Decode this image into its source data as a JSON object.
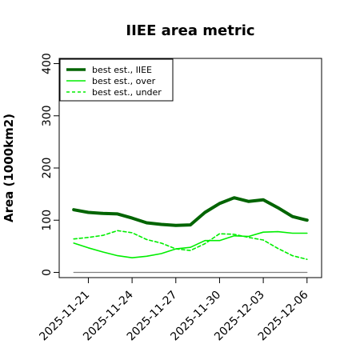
{
  "chart_data": {
    "type": "line",
    "title": "IIEE area metric",
    "xlabel": "",
    "ylabel": "Area (1000km2)",
    "ylim": [
      -10,
      410
    ],
    "yticks": [
      0,
      100,
      200,
      300,
      400
    ],
    "xticks": [
      "2025-11-21",
      "2025-11-24",
      "2025-11-27",
      "2025-11-30",
      "2025-12-03",
      "2025-12-06"
    ],
    "x": [
      "2025-11-20",
      "2025-11-21",
      "2025-11-22",
      "2025-11-23",
      "2025-11-24",
      "2025-11-25",
      "2025-11-26",
      "2025-11-27",
      "2025-11-28",
      "2025-11-29",
      "2025-11-30",
      "2025-12-01",
      "2025-12-02",
      "2025-12-03",
      "2025-12-04",
      "2025-12-05",
      "2025-12-06"
    ],
    "xlim": [
      "2025-11-19",
      "2025-12-07"
    ],
    "series": [
      {
        "name": "best est., IIEE",
        "color": "#006400",
        "style": "solid",
        "width": 4,
        "values": [
          120,
          115,
          113,
          112,
          104,
          95,
          92,
          90,
          91,
          115,
          132,
          143,
          136,
          139,
          124,
          107,
          100
        ]
      },
      {
        "name": "best est., over",
        "color": "#00ee00",
        "style": "solid",
        "width": 1.6,
        "values": [
          56,
          47,
          39,
          32,
          28,
          31,
          36,
          45,
          48,
          61,
          61,
          70,
          69,
          77,
          78,
          75,
          75
        ]
      },
      {
        "name": "best est., under",
        "color": "#00ee00",
        "style": "dashed",
        "width": 1.6,
        "values": [
          64,
          67,
          71,
          80,
          76,
          63,
          56,
          45,
          42,
          55,
          74,
          73,
          67,
          62,
          46,
          32,
          25
        ]
      },
      {
        "name": "",
        "color": "#808080",
        "style": "solid",
        "width": 1.2,
        "values": [
          0,
          0,
          0,
          0,
          0,
          0,
          0,
          0,
          0,
          0,
          0,
          0,
          0,
          0,
          0,
          0,
          0
        ]
      }
    ],
    "legend": "top-left",
    "grid": false
  }
}
